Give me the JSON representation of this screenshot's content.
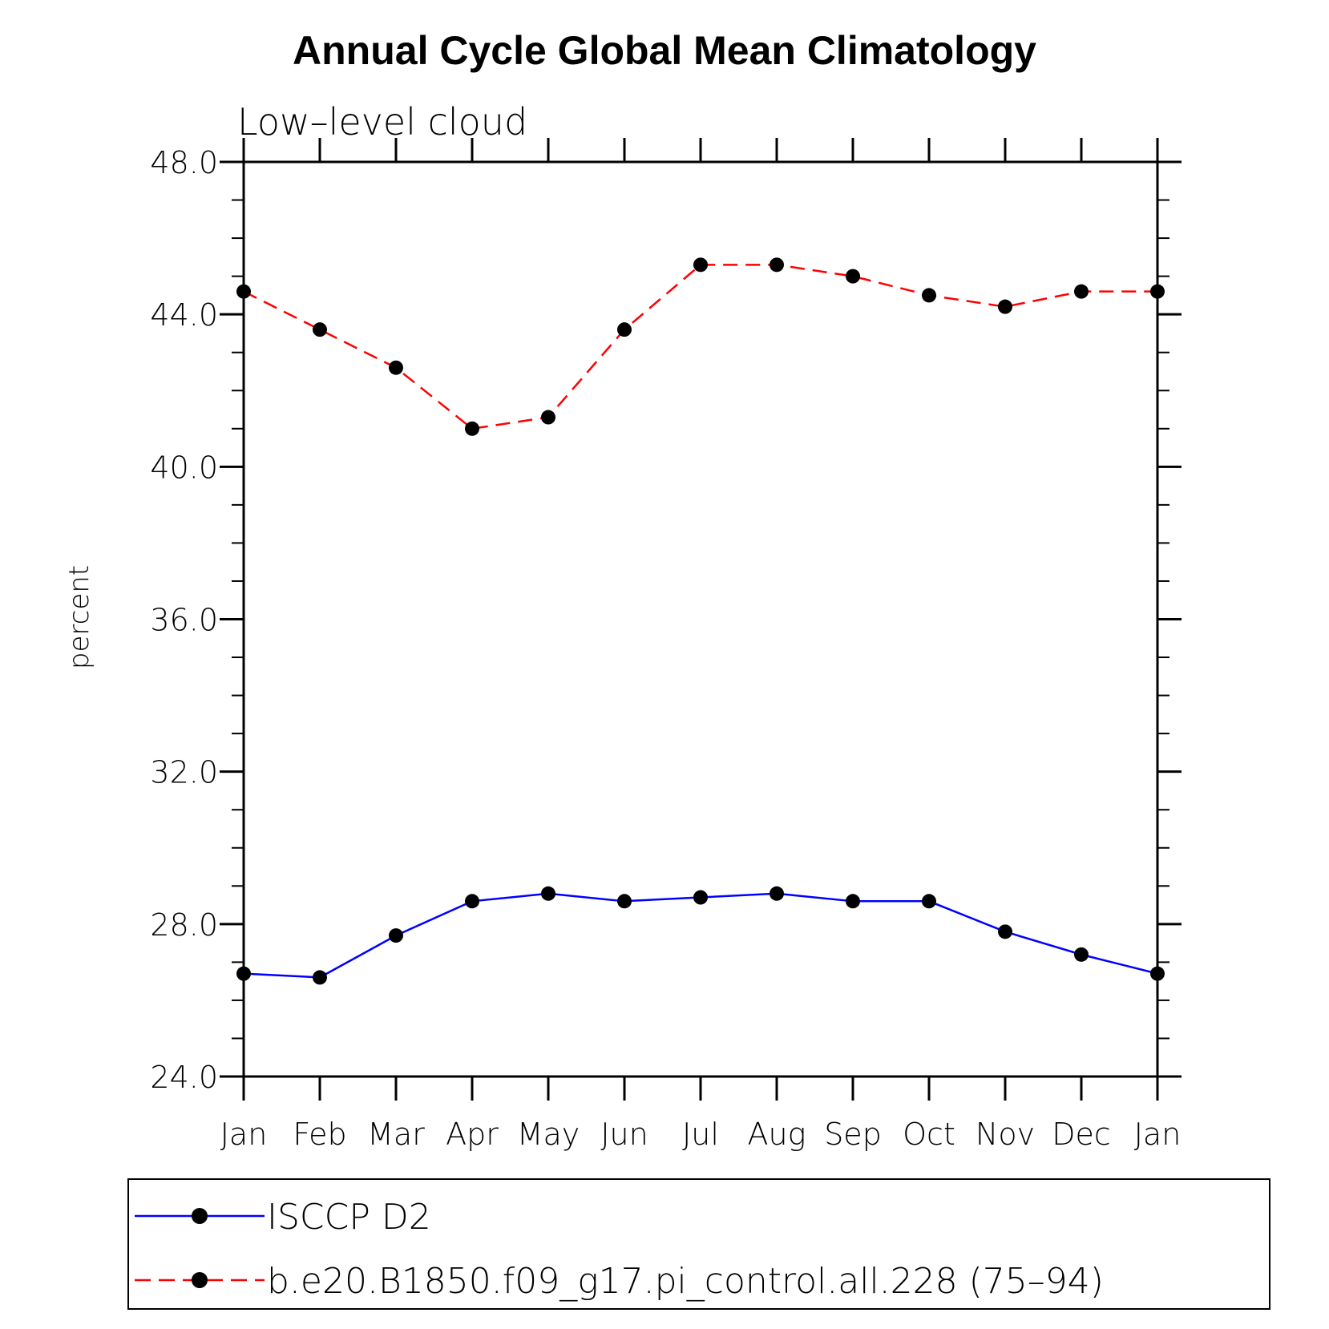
{
  "chart_data": {
    "type": "line",
    "title": "Annual Cycle Global Mean Climatology",
    "subtitle": "Low–level cloud",
    "ylabel": "percent",
    "xlabel": "",
    "categories": [
      "Jan",
      "Feb",
      "Mar",
      "Apr",
      "May",
      "Jun",
      "Jul",
      "Aug",
      "Sep",
      "Oct",
      "Nov",
      "Dec",
      "Jan"
    ],
    "ylim": [
      24.0,
      48.0
    ],
    "yticks": [
      "24.0",
      "28.0",
      "32.0",
      "36.0",
      "40.0",
      "44.0",
      "48.0"
    ],
    "yminor_step": 1.0,
    "grid": false,
    "legend_position": "bottom",
    "series": [
      {
        "name": "ISCCP D2",
        "color": "#0000ff",
        "dash": "solid",
        "marker": "filled-circle",
        "values": [
          26.7,
          26.6,
          27.7,
          28.6,
          28.8,
          28.6,
          28.7,
          28.8,
          28.6,
          28.6,
          27.8,
          27.2,
          26.7
        ]
      },
      {
        "name": "b.e20.B1850.f09_g17.pi_control.all.228 (75–94)",
        "color": "#ff0000",
        "dash": "dashed",
        "marker": "filled-circle",
        "values": [
          44.6,
          43.6,
          42.6,
          41.0,
          41.3,
          43.6,
          45.3,
          45.3,
          45.0,
          44.5,
          44.2,
          44.6,
          44.6
        ]
      }
    ]
  }
}
